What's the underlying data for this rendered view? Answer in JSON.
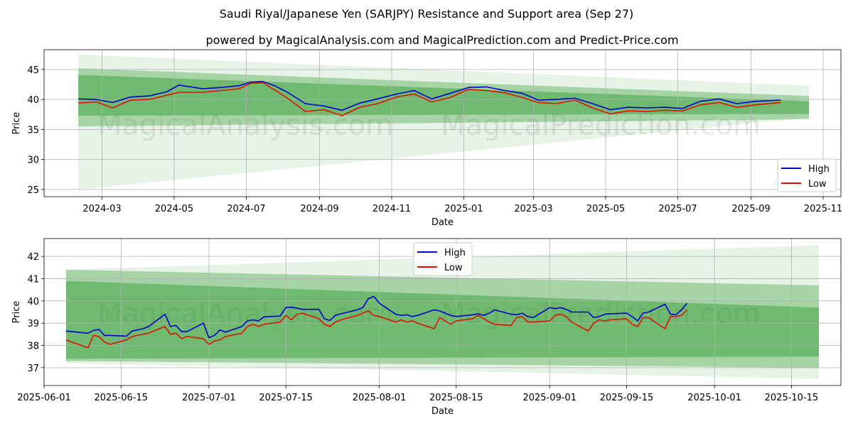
{
  "title": "Saudi Riyal/Japanese Yen (SARJPY) Resistance and Support area (Sep 27)",
  "subtitle": "powered by MagicalAnalysis.com and MagicalPrediction.com and Predict-Price.com",
  "watermarks": [
    "MagicalAnalysis.com",
    "MagicalPrediction.com"
  ],
  "colors": {
    "high": "#0000cc",
    "low": "#dd1100",
    "band": "#2e9a2e",
    "grid": "#b0b0b0",
    "axis": "#000000"
  },
  "chart_data": [
    {
      "type": "line",
      "xlabel": "Date",
      "ylabel": "Price",
      "xlim": [
        "2024-01-12",
        "2025-11-16"
      ],
      "ylim": [
        23.8,
        48.3
      ],
      "x_ticks": [
        "2024-03",
        "2024-05",
        "2024-07",
        "2024-09",
        "2024-11",
        "2025-01",
        "2025-03",
        "2025-05",
        "2025-07",
        "2025-09",
        "2025-11"
      ],
      "x_tick_dates": [
        "2024-03-01",
        "2024-05-01",
        "2024-07-01",
        "2024-09-01",
        "2024-11-01",
        "2025-01-01",
        "2025-03-01",
        "2025-05-01",
        "2025-07-01",
        "2025-09-01",
        "2025-11-01"
      ],
      "y_ticks": [
        "25",
        "30",
        "35",
        "40",
        "45"
      ],
      "y_tick_values": [
        25,
        30,
        35,
        40,
        45
      ],
      "grid": true,
      "legend": {
        "position": "bottom-right",
        "entries": [
          "High",
          "Low"
        ]
      },
      "bands": [
        {
          "x": [
            "2024-02-10",
            "2025-10-20"
          ],
          "upper": [
            47.5,
            42.3
          ],
          "lower": [
            25.0,
            37.0
          ],
          "opacity": 0.12
        },
        {
          "x": [
            "2024-02-10",
            "2025-10-20"
          ],
          "upper": [
            45.2,
            40.6
          ],
          "lower": [
            35.5,
            36.7
          ],
          "opacity": 0.35
        },
        {
          "x": [
            "2024-02-10",
            "2025-10-20"
          ],
          "upper": [
            44.1,
            39.7
          ],
          "lower": [
            37.3,
            37.6
          ],
          "opacity": 0.45
        }
      ],
      "series": [
        {
          "name": "High",
          "x": [
            "2024-02-10",
            "2024-02-25",
            "2024-03-10",
            "2024-03-25",
            "2024-04-10",
            "2024-04-25",
            "2024-05-05",
            "2024-05-25",
            "2024-06-10",
            "2024-06-25",
            "2024-07-05",
            "2024-07-15",
            "2024-07-25",
            "2024-08-05",
            "2024-08-20",
            "2024-09-05",
            "2024-09-20",
            "2024-10-05",
            "2024-10-20",
            "2024-11-05",
            "2024-11-20",
            "2024-12-05",
            "2024-12-20",
            "2025-01-05",
            "2025-01-20",
            "2025-02-05",
            "2025-02-20",
            "2025-03-05",
            "2025-03-20",
            "2025-04-05",
            "2025-04-20",
            "2025-05-05",
            "2025-05-20",
            "2025-06-05",
            "2025-06-20",
            "2025-07-05",
            "2025-07-20",
            "2025-08-05",
            "2025-08-20",
            "2025-09-05",
            "2025-09-26"
          ],
          "values": [
            40.1,
            40.0,
            39.5,
            40.4,
            40.6,
            41.3,
            42.4,
            41.8,
            42.0,
            42.3,
            42.9,
            43.0,
            42.3,
            41.2,
            39.3,
            38.9,
            38.2,
            39.4,
            40.1,
            40.9,
            41.5,
            40.1,
            41.0,
            42.0,
            42.1,
            41.5,
            41.0,
            39.9,
            40.0,
            40.2,
            39.3,
            38.3,
            38.7,
            38.6,
            38.7,
            38.5,
            39.7,
            40.1,
            39.3,
            39.7,
            39.9
          ]
        },
        {
          "name": "Low",
          "x": [
            "2024-02-10",
            "2024-02-25",
            "2024-03-10",
            "2024-03-25",
            "2024-04-10",
            "2024-04-25",
            "2024-05-05",
            "2024-05-25",
            "2024-06-10",
            "2024-06-25",
            "2024-07-05",
            "2024-07-15",
            "2024-07-25",
            "2024-08-05",
            "2024-08-20",
            "2024-09-05",
            "2024-09-20",
            "2024-10-05",
            "2024-10-20",
            "2024-11-05",
            "2024-11-20",
            "2024-12-05",
            "2024-12-20",
            "2025-01-05",
            "2025-01-20",
            "2025-02-05",
            "2025-02-20",
            "2025-03-05",
            "2025-03-20",
            "2025-04-05",
            "2025-04-20",
            "2025-05-05",
            "2025-05-20",
            "2025-06-05",
            "2025-06-20",
            "2025-07-05",
            "2025-07-20",
            "2025-08-05",
            "2025-08-20",
            "2025-09-05",
            "2025-09-26"
          ],
          "values": [
            39.4,
            39.6,
            38.6,
            39.9,
            40.0,
            40.7,
            41.2,
            41.2,
            41.5,
            41.8,
            42.7,
            42.8,
            41.6,
            40.2,
            38.0,
            38.3,
            37.3,
            38.7,
            39.3,
            40.4,
            40.9,
            39.6,
            40.3,
            41.7,
            41.5,
            41.1,
            40.3,
            39.5,
            39.3,
            39.9,
            38.6,
            37.6,
            38.1,
            38.0,
            38.2,
            38.1,
            39.1,
            39.5,
            38.7,
            39.1,
            39.5
          ]
        }
      ]
    },
    {
      "type": "line",
      "xlabel": "Date",
      "ylabel": "Price",
      "xlim": [
        "2025-06-01",
        "2025-10-24"
      ],
      "ylim": [
        36.2,
        42.8
      ],
      "x_ticks": [
        "2025-06-01",
        "2025-06-15",
        "2025-07-01",
        "2025-07-15",
        "2025-08-01",
        "2025-08-15",
        "2025-09-01",
        "2025-09-15",
        "2025-10-01",
        "2025-10-15"
      ],
      "x_tick_dates": [
        "2025-06-01",
        "2025-06-15",
        "2025-07-01",
        "2025-07-15",
        "2025-08-01",
        "2025-08-15",
        "2025-09-01",
        "2025-09-15",
        "2025-10-01",
        "2025-10-15"
      ],
      "y_ticks": [
        "37",
        "38",
        "39",
        "40",
        "41",
        "42"
      ],
      "y_tick_values": [
        37,
        38,
        39,
        40,
        41,
        42
      ],
      "grid": true,
      "legend": {
        "position": "top-center",
        "entries": [
          "High",
          "Low"
        ]
      },
      "bands": [
        {
          "x": [
            "2025-06-05",
            "2025-10-20"
          ],
          "upper": [
            41.4,
            42.5
          ],
          "lower": [
            37.2,
            36.5
          ],
          "opacity": 0.12
        },
        {
          "x": [
            "2025-06-05",
            "2025-10-20"
          ],
          "upper": [
            41.4,
            40.7
          ],
          "lower": [
            37.3,
            37.0
          ],
          "opacity": 0.35
        },
        {
          "x": [
            "2025-06-05",
            "2025-10-20"
          ],
          "upper": [
            40.9,
            39.7
          ],
          "lower": [
            37.4,
            37.5
          ],
          "opacity": 0.45
        }
      ],
      "series": [
        {
          "name": "High",
          "x": [
            "2025-06-05",
            "2025-06-06",
            "2025-06-09",
            "2025-06-10",
            "2025-06-11",
            "2025-06-12",
            "2025-06-13",
            "2025-06-16",
            "2025-06-17",
            "2025-06-18",
            "2025-06-19",
            "2025-06-20",
            "2025-06-23",
            "2025-06-24",
            "2025-06-25",
            "2025-06-26",
            "2025-06-27",
            "2025-06-30",
            "2025-07-01",
            "2025-07-02",
            "2025-07-03",
            "2025-07-04",
            "2025-07-07",
            "2025-07-08",
            "2025-07-09",
            "2025-07-10",
            "2025-07-11",
            "2025-07-14",
            "2025-07-15",
            "2025-07-16",
            "2025-07-17",
            "2025-07-18",
            "2025-07-21",
            "2025-07-22",
            "2025-07-23",
            "2025-07-24",
            "2025-07-25",
            "2025-07-28",
            "2025-07-29",
            "2025-07-30",
            "2025-07-31",
            "2025-08-01",
            "2025-08-04",
            "2025-08-05",
            "2025-08-06",
            "2025-08-07",
            "2025-08-08",
            "2025-08-11",
            "2025-08-12",
            "2025-08-13",
            "2025-08-14",
            "2025-08-15",
            "2025-08-18",
            "2025-08-19",
            "2025-08-20",
            "2025-08-21",
            "2025-08-22",
            "2025-08-25",
            "2025-08-26",
            "2025-08-27",
            "2025-08-28",
            "2025-08-29",
            "2025-09-01",
            "2025-09-02",
            "2025-09-03",
            "2025-09-04",
            "2025-09-05",
            "2025-09-08",
            "2025-09-09",
            "2025-09-10",
            "2025-09-11",
            "2025-09-12",
            "2025-09-15",
            "2025-09-16",
            "2025-09-17",
            "2025-09-18",
            "2025-09-19",
            "2025-09-22",
            "2025-09-23",
            "2025-09-24",
            "2025-09-25",
            "2025-09-26"
          ],
          "values": [
            38.65,
            38.62,
            38.55,
            38.68,
            38.72,
            38.45,
            38.45,
            38.42,
            38.65,
            38.7,
            38.75,
            38.85,
            39.4,
            38.85,
            38.9,
            38.62,
            38.62,
            39.0,
            38.35,
            38.45,
            38.7,
            38.6,
            38.85,
            39.1,
            39.15,
            39.1,
            39.28,
            39.32,
            39.7,
            39.72,
            39.68,
            39.62,
            39.62,
            39.2,
            39.12,
            39.35,
            39.42,
            39.6,
            39.7,
            40.1,
            40.2,
            39.9,
            39.4,
            39.35,
            39.38,
            39.3,
            39.35,
            39.6,
            39.55,
            39.45,
            39.35,
            39.3,
            39.38,
            39.42,
            39.35,
            39.45,
            39.6,
            39.4,
            39.38,
            39.45,
            39.3,
            39.25,
            39.7,
            39.65,
            39.7,
            39.62,
            39.5,
            39.5,
            39.25,
            39.3,
            39.4,
            39.42,
            39.45,
            39.3,
            39.1,
            39.45,
            39.5,
            39.85,
            39.4,
            39.38,
            39.6,
            39.9
          ]
        },
        {
          "name": "Low",
          "x": [
            "2025-06-05",
            "2025-06-06",
            "2025-06-09",
            "2025-06-10",
            "2025-06-11",
            "2025-06-12",
            "2025-06-13",
            "2025-06-16",
            "2025-06-17",
            "2025-06-18",
            "2025-06-19",
            "2025-06-20",
            "2025-06-23",
            "2025-06-24",
            "2025-06-25",
            "2025-06-26",
            "2025-06-27",
            "2025-06-30",
            "2025-07-01",
            "2025-07-02",
            "2025-07-03",
            "2025-07-04",
            "2025-07-07",
            "2025-07-08",
            "2025-07-09",
            "2025-07-10",
            "2025-07-11",
            "2025-07-14",
            "2025-07-15",
            "2025-07-16",
            "2025-07-17",
            "2025-07-18",
            "2025-07-21",
            "2025-07-22",
            "2025-07-23",
            "2025-07-24",
            "2025-07-25",
            "2025-07-28",
            "2025-07-29",
            "2025-07-30",
            "2025-07-31",
            "2025-08-01",
            "2025-08-04",
            "2025-08-05",
            "2025-08-06",
            "2025-08-07",
            "2025-08-08",
            "2025-08-11",
            "2025-08-12",
            "2025-08-13",
            "2025-08-14",
            "2025-08-15",
            "2025-08-18",
            "2025-08-19",
            "2025-08-20",
            "2025-08-21",
            "2025-08-22",
            "2025-08-25",
            "2025-08-26",
            "2025-08-27",
            "2025-08-28",
            "2025-08-29",
            "2025-09-01",
            "2025-09-02",
            "2025-09-03",
            "2025-09-04",
            "2025-09-05",
            "2025-09-08",
            "2025-09-09",
            "2025-09-10",
            "2025-09-11",
            "2025-09-12",
            "2025-09-15",
            "2025-09-16",
            "2025-09-17",
            "2025-09-18",
            "2025-09-19",
            "2025-09-22",
            "2025-09-23",
            "2025-09-24",
            "2025-09-25",
            "2025-09-26"
          ],
          "values": [
            38.25,
            38.15,
            37.9,
            38.45,
            38.4,
            38.15,
            38.05,
            38.25,
            38.4,
            38.45,
            38.5,
            38.55,
            38.85,
            38.5,
            38.55,
            38.3,
            38.4,
            38.3,
            38.05,
            38.2,
            38.25,
            38.4,
            38.55,
            38.85,
            38.95,
            38.85,
            38.95,
            39.05,
            39.35,
            39.15,
            39.4,
            39.45,
            39.2,
            38.95,
            38.85,
            39.05,
            39.15,
            39.35,
            39.45,
            39.55,
            39.35,
            39.3,
            39.05,
            39.15,
            39.05,
            39.1,
            39.0,
            38.75,
            39.25,
            39.1,
            38.95,
            39.1,
            39.2,
            39.35,
            39.2,
            39.05,
            38.95,
            38.9,
            39.25,
            39.3,
            39.05,
            39.05,
            39.1,
            39.35,
            39.4,
            39.3,
            39.05,
            38.65,
            39.0,
            39.15,
            39.1,
            39.15,
            39.2,
            38.95,
            38.85,
            39.25,
            39.25,
            38.75,
            39.3,
            39.3,
            39.35,
            39.6
          ]
        }
      ]
    }
  ]
}
